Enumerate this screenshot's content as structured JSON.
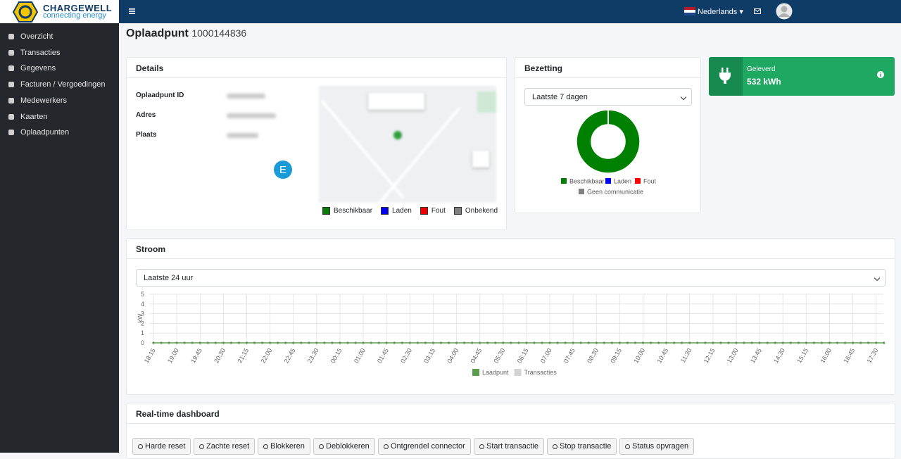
{
  "brand": {
    "name": "CHARGEWELL",
    "tagline": "connecting energy"
  },
  "topbar": {
    "language": "Nederlands"
  },
  "sidebar": {
    "items": [
      "Overzicht",
      "Transacties",
      "Gegevens",
      "Facturen / Vergoedingen",
      "Medewerkers",
      "Kaarten",
      "Oplaadpunten"
    ]
  },
  "page": {
    "title": "Oplaadpunt",
    "id": "1000144836"
  },
  "details": {
    "title": "Details",
    "fields": [
      "Oplaadpunt ID",
      "Adres",
      "Plaats"
    ],
    "marker": "E",
    "map_legend": [
      {
        "label": "Beschikbaar",
        "color": "#0a7a0a"
      },
      {
        "label": "Laden",
        "color": "#0000ee"
      },
      {
        "label": "Fout",
        "color": "#ee0000"
      },
      {
        "label": "Onbekend",
        "color": "#808080"
      }
    ]
  },
  "bezetting": {
    "title": "Bezetting",
    "select": "Laatste 7 dagen"
  },
  "geleverd": {
    "label": "Geleverd",
    "value": "532 kWh"
  },
  "stroom": {
    "title": "Stroom",
    "select": "Laatste 24 uur"
  },
  "dashboard": {
    "title": "Real-time dashboard",
    "buttons": [
      "Harde reset",
      "Zachte reset",
      "Blokkeren",
      "Deblokkeren",
      "Ontgrendel connector",
      "Start transactie",
      "Stop transactie",
      "Status opvragen"
    ]
  },
  "chart_data": [
    {
      "type": "pie",
      "categories": [
        "Beschikbaar",
        "Laden",
        "Fout",
        "Geen communicatie"
      ],
      "values": [
        100,
        0,
        0,
        0
      ],
      "colors": [
        "#008000",
        "#0000ff",
        "#ff0000",
        "#808080"
      ]
    },
    {
      "type": "line",
      "y_label": "kW",
      "ylim": [
        0,
        5
      ],
      "yticks": [
        0,
        1,
        2,
        3,
        4,
        5
      ],
      "grid": true,
      "categories": [
        "18:15",
        null,
        null,
        "19:00",
        null,
        null,
        "19:45",
        null,
        null,
        "20:30",
        null,
        null,
        "21:15",
        null,
        null,
        "22:00",
        null,
        null,
        "22:45",
        null,
        null,
        "23:30",
        null,
        null,
        "00:15",
        null,
        null,
        "01:00",
        null,
        null,
        "01:45",
        null,
        null,
        "02:30",
        null,
        null,
        "03:15",
        null,
        null,
        "04:00",
        null,
        null,
        "04:45",
        null,
        null,
        "05:30",
        null,
        null,
        "06:15",
        null,
        null,
        "07:00",
        null,
        null,
        "07:45",
        null,
        null,
        "08:30",
        null,
        null,
        "09:15",
        null,
        null,
        "10:00",
        null,
        null,
        "10:45",
        null,
        null,
        "11:30",
        null,
        null,
        "12:15",
        null,
        null,
        "13:00",
        null,
        null,
        "13:45",
        null,
        null,
        "14:30",
        null,
        null,
        "15:15",
        null,
        null,
        "16:00",
        null,
        null,
        "16:45",
        null,
        null,
        "17:30",
        null
      ],
      "series": [
        {
          "name": "Laadpunt",
          "color": "#5a9e4b",
          "values": [
            0,
            0,
            0,
            0,
            0,
            0,
            0,
            0,
            0,
            0,
            0,
            0,
            0,
            0,
            0,
            0,
            0,
            0,
            0,
            0,
            0,
            0,
            0,
            0,
            0,
            0,
            0,
            0,
            0,
            0,
            0,
            0,
            0,
            0,
            0,
            0,
            0,
            0,
            0,
            0,
            0,
            0,
            0,
            0,
            0,
            0,
            0,
            0,
            0,
            0,
            0,
            0,
            0,
            0,
            0,
            0,
            0,
            0,
            0,
            0,
            0,
            0,
            0,
            0,
            0,
            0,
            0,
            0,
            0,
            0,
            0,
            0,
            0,
            0,
            0,
            0,
            0,
            0,
            0,
            0,
            0,
            0,
            0,
            0,
            0,
            0,
            0,
            0,
            0,
            0,
            0,
            0,
            0,
            0,
            0
          ]
        },
        {
          "name": "Transacties",
          "color": "#d3d3d3",
          "values": [
            0,
            0,
            0,
            0,
            0,
            0,
            0,
            0,
            0,
            0,
            0,
            0,
            0,
            0,
            0,
            0,
            0,
            0,
            0,
            0,
            0,
            0,
            0,
            0,
            0,
            0,
            0,
            0,
            0,
            0,
            0,
            0,
            0,
            0,
            0,
            0,
            0,
            0,
            0,
            0,
            0,
            0,
            0,
            0,
            0,
            0,
            0,
            0,
            0,
            0,
            0,
            0,
            0,
            0,
            0,
            0,
            0,
            0,
            0,
            0,
            0,
            0,
            0,
            0,
            0,
            0,
            0,
            0,
            0,
            0,
            0,
            0,
            0,
            0,
            0,
            0,
            0,
            0,
            0,
            0,
            0,
            0,
            0,
            0,
            0,
            0,
            0,
            0,
            0,
            0,
            0,
            0,
            0,
            0,
            0
          ]
        }
      ]
    }
  ]
}
